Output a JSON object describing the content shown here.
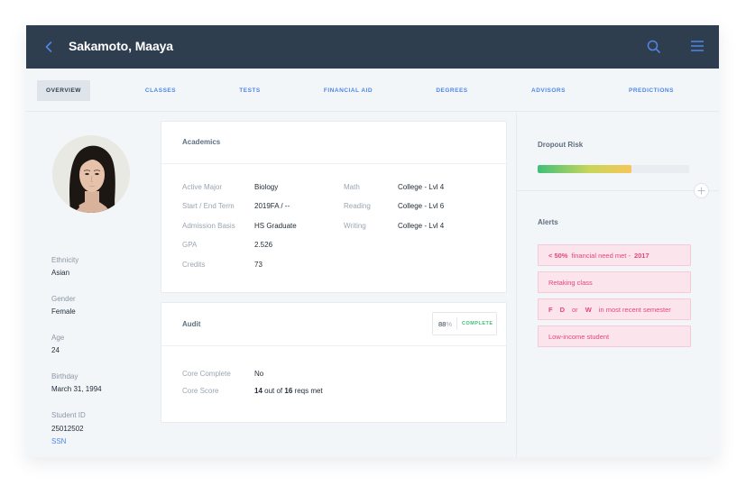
{
  "header": {
    "student_name": "Sakamoto, Maaya"
  },
  "tabs": [
    {
      "label": "OVERVIEW",
      "active": true
    },
    {
      "label": "CLASSES"
    },
    {
      "label": "TESTS"
    },
    {
      "label": "FINANCIAL AID"
    },
    {
      "label": "DEGREES"
    },
    {
      "label": "ADVISORS"
    },
    {
      "label": "PREDICTIONS"
    }
  ],
  "profile": {
    "ethnicity_label": "Ethnicity",
    "ethnicity_value": "Asian",
    "gender_label": "Gender",
    "gender_value": "Female",
    "age_label": "Age",
    "age_value": "24",
    "birthday_label": "Birthday",
    "birthday_value": "March 31, 1994",
    "student_id_label": "Student ID",
    "student_id_value": "25012502",
    "ssn_link": "SSN"
  },
  "academics": {
    "title": "Academics",
    "active_major_label": "Active Major",
    "active_major_value": "Biology",
    "start_end_term_label": "Start / End Term",
    "start_end_term_value": "2019FA / --",
    "admission_basis_label": "Admission Basis",
    "admission_basis_value": "HS Graduate",
    "gpa_label": "GPA",
    "gpa_value": "2.526",
    "credits_label": "Credits",
    "credits_value": "73",
    "math_label": "Math",
    "math_value": "College - Lvl 4",
    "reading_label": "Reading",
    "reading_value": "College - Lvl 6",
    "writing_label": "Writing",
    "writing_value": "College - Lvl 4"
  },
  "audit": {
    "title": "Audit",
    "percent_value": "88",
    "percent_sign": "%",
    "status": "COMPLETE",
    "core_complete_label": "Core Complete",
    "core_complete_value": "No",
    "core_score_label": "Core Score",
    "core_score_done": "14",
    "core_score_out_of": "out of",
    "core_score_total": "16",
    "core_score_suffix": "reqs met"
  },
  "dropout_risk": {
    "title": "Dropout Risk",
    "level": 0.62,
    "gradient_colors": [
      "#3fbf7a",
      "#c8d65a",
      "#f6c65a"
    ]
  },
  "alerts": {
    "title": "Alerts",
    "items": [
      {
        "strong_prefix": "< 50%",
        "text": "financial need met -",
        "strong_suffix": "2017"
      },
      {
        "text": "Retaking class"
      },
      {
        "f": "F",
        "d": "D",
        "or": "or",
        "w": "W",
        "text": "in most recent semester"
      },
      {
        "text": "Low-income student"
      }
    ]
  },
  "colors": {
    "topbar": "#2f3e4f",
    "accent": "#4f86e6",
    "alert_bg": "#fce4ec",
    "alert_text": "#e2477b",
    "complete_green": "#3fbf7a"
  },
  "icons": {
    "back": "chevron-left-icon",
    "search": "search-icon",
    "menu": "hamburger-menu-icon",
    "add": "plus-icon"
  }
}
